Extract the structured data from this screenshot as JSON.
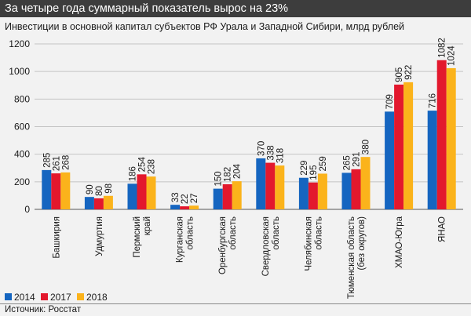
{
  "header": {
    "title": "За четыре года суммарный показатель вырос на 23%",
    "subtitle": "Инвестиции в основной капитал субъектов РФ Урала и Западной Сибири, млрд рублей"
  },
  "footer": {
    "source": "Источник: Росстат"
  },
  "colors": {
    "s2014": "#1565c0",
    "s2017": "#e3182d",
    "s2018": "#fbb31b",
    "grid": "#c4c4c4",
    "text": "#1a1a1a"
  },
  "chart_data": {
    "type": "bar",
    "title": "Инвестиции в основной капитал субъектов РФ Урала и Западной Сибири, млрд рублей",
    "xlabel": "",
    "ylabel": "",
    "ylim": [
      0,
      1200
    ],
    "yticks": [
      0,
      200,
      400,
      600,
      800,
      1000,
      1200
    ],
    "grid": true,
    "legend": "bottom-left",
    "categories": [
      [
        "Башкирия"
      ],
      [
        "Удмуртия"
      ],
      [
        "Пермский",
        "край"
      ],
      [
        "Курганская",
        "область"
      ],
      [
        "Оренбургская",
        "область"
      ],
      [
        "Свердловская",
        "область"
      ],
      [
        "Челябинская",
        "область"
      ],
      [
        "Тюменская область",
        "(без округов)"
      ],
      [
        "ХМАО-Югра"
      ],
      [
        "ЯНАО"
      ]
    ],
    "series": [
      {
        "name": "2014",
        "color": "#1565c0",
        "values": [
          285,
          90,
          186,
          33,
          150,
          370,
          229,
          265,
          709,
          716
        ]
      },
      {
        "name": "2017",
        "color": "#e3182d",
        "values": [
          261,
          80,
          254,
          22,
          182,
          338,
          195,
          291,
          905,
          1082
        ]
      },
      {
        "name": "2018",
        "color": "#fbb31b",
        "values": [
          268,
          98,
          238,
          27,
          204,
          318,
          259,
          380,
          922,
          1024
        ]
      }
    ]
  }
}
